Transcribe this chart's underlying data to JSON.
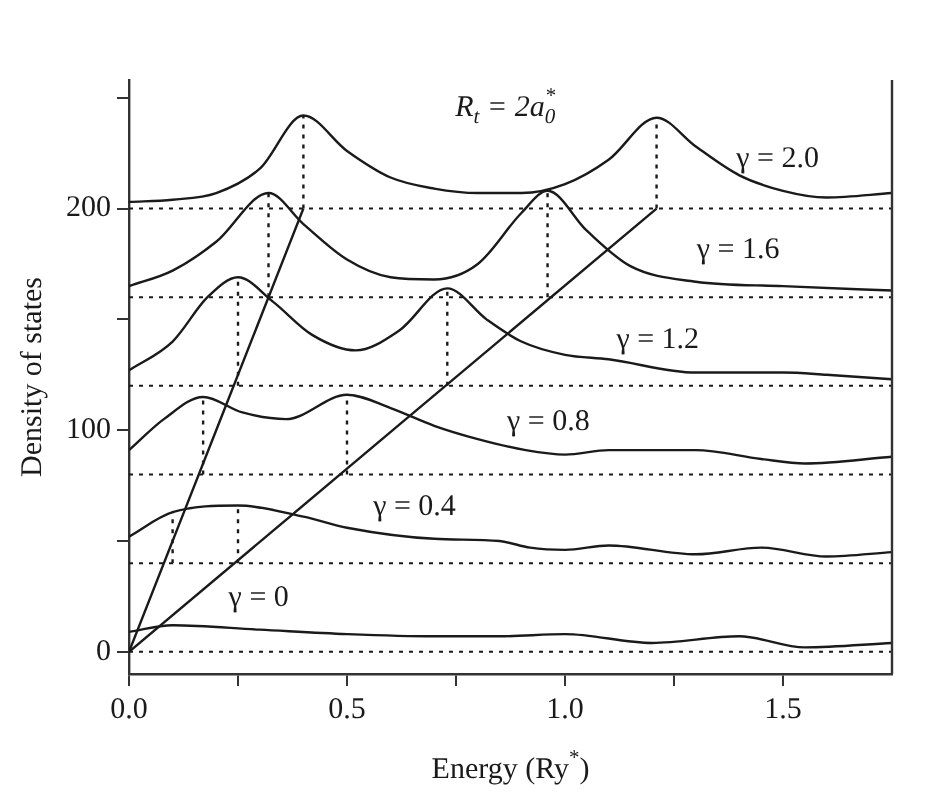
{
  "chart_data": {
    "type": "line",
    "xlabel": "Energy (Ry$^{*}$)",
    "ylabel": "Density of states",
    "xlim": [
      0,
      1.75
    ],
    "xticks": [
      {
        "value": 0,
        "label": "0.0"
      },
      {
        "value": 0.25,
        "label": null
      },
      0.5,
      {
        "value": 0.75,
        "label": null
      },
      {
        "value": 1,
        "label": "1.0"
      },
      {
        "value": 1.25,
        "label": null
      },
      1.5
    ],
    "ylim": [
      -10,
      258
    ],
    "yticks": [
      0,
      {
        "value": 50,
        "label": null
      },
      100,
      {
        "value": 150,
        "label": null
      },
      200,
      {
        "value": 250,
        "label": null
      }
    ],
    "grid": false,
    "legend": false,
    "marker": "none",
    "line_style": "solid",
    "series": [
      {
        "name": "γ = 0",
        "color": "#1a1a1a",
        "x": [
          0,
          0.1,
          0.3,
          0.5,
          0.7,
          0.85,
          1.0,
          1.2,
          1.4,
          1.55,
          1.75
        ],
        "values": [
          9,
          12,
          10,
          8,
          7,
          7,
          8,
          4,
          7,
          2,
          4
        ]
      },
      {
        "name": "γ = 0.4",
        "color": "#1a1a1a",
        "x": [
          0,
          0.1,
          0.25,
          0.4,
          0.5,
          0.7,
          0.85,
          0.92,
          1.0,
          1.1,
          1.3,
          1.45,
          1.6,
          1.75
        ],
        "values": [
          52,
          63,
          66,
          61,
          56,
          51,
          50,
          47,
          46,
          48,
          44,
          47,
          43,
          45
        ]
      },
      {
        "name": "γ = 0.8",
        "color": "#1a1a1a",
        "x": [
          0,
          0.08,
          0.17,
          0.26,
          0.36,
          0.5,
          0.6,
          0.7,
          0.8,
          0.91,
          1.0,
          1.1,
          1.3,
          1.45,
          1.55,
          1.75
        ],
        "values": [
          91,
          105,
          115,
          108,
          105,
          116,
          110,
          102,
          96,
          91,
          89,
          91,
          91,
          87,
          85,
          88
        ]
      },
      {
        "name": "γ = 1.2",
        "color": "#1a1a1a",
        "x": [
          0,
          0.1,
          0.18,
          0.25,
          0.33,
          0.42,
          0.52,
          0.62,
          0.73,
          0.82,
          0.9,
          1.0,
          1.1,
          1.3,
          1.5,
          1.6,
          1.75
        ],
        "values": [
          127,
          140,
          160,
          169,
          158,
          143,
          136,
          145,
          164,
          150,
          140,
          134,
          132,
          126,
          126,
          125,
          123
        ]
      },
      {
        "name": "γ = 1.6",
        "color": "#1a1a1a",
        "x": [
          0,
          0.1,
          0.2,
          0.32,
          0.4,
          0.5,
          0.6,
          0.7,
          0.8,
          0.9,
          0.96,
          1.05,
          1.15,
          1.3,
          1.5,
          1.75
        ],
        "values": [
          165,
          172,
          185,
          207,
          193,
          177,
          169,
          168,
          175,
          198,
          208,
          190,
          174,
          167,
          165,
          163
        ]
      },
      {
        "name": "γ = 2.0",
        "color": "#1a1a1a",
        "x": [
          0,
          0.1,
          0.2,
          0.3,
          0.4,
          0.5,
          0.6,
          0.7,
          0.8,
          0.9,
          1.0,
          1.1,
          1.21,
          1.3,
          1.4,
          1.5,
          1.6,
          1.75
        ],
        "values": [
          203,
          204,
          207,
          218,
          242,
          226,
          214,
          209,
          207,
          207,
          211,
          222,
          241,
          228,
          215,
          208,
          205,
          207
        ]
      },
      {
        "color": "#1a1a1a",
        "x": [
          0,
          0.4
        ],
        "values": [
          0,
          200
        ]
      },
      {
        "color": "#1a1a1a",
        "x": [
          0,
          1.21
        ],
        "values": [
          0,
          200
        ]
      },
      {
        "color": "#1a1a1a",
        "line_style": "dotted",
        "x": [
          0.1,
          0.1
        ],
        "values": [
          40,
          63
        ]
      },
      {
        "color": "#1a1a1a",
        "line_style": "dotted",
        "x": [
          0.25,
          0.25
        ],
        "values": [
          40,
          66
        ]
      },
      {
        "color": "#1a1a1a",
        "line_style": "dotted",
        "x": [
          0.17,
          0.17
        ],
        "values": [
          80,
          115
        ]
      },
      {
        "color": "#1a1a1a",
        "line_style": "dotted",
        "x": [
          0.5,
          0.5
        ],
        "values": [
          80,
          116
        ]
      },
      {
        "color": "#1a1a1a",
        "line_style": "dotted",
        "x": [
          0.25,
          0.25
        ],
        "values": [
          120,
          169
        ]
      },
      {
        "color": "#1a1a1a",
        "line_style": "dotted",
        "x": [
          0.73,
          0.73
        ],
        "values": [
          120,
          164
        ]
      },
      {
        "color": "#1a1a1a",
        "line_style": "dotted",
        "x": [
          0.32,
          0.32
        ],
        "values": [
          160,
          207
        ]
      },
      {
        "color": "#1a1a1a",
        "line_style": "dotted",
        "x": [
          0.96,
          0.96
        ],
        "values": [
          160,
          208
        ]
      },
      {
        "color": "#1a1a1a",
        "line_style": "dotted",
        "x": [
          0.4,
          0.4
        ],
        "values": [
          200,
          242
        ]
      },
      {
        "color": "#1a1a1a",
        "line_style": "dotted",
        "x": [
          1.21,
          1.21
        ],
        "values": [
          200,
          241
        ]
      }
    ],
    "ref_lines": [
      {
        "axis": "y",
        "value": 0,
        "color": "#1a1a1a",
        "line_style": "dotted"
      },
      {
        "axis": "y",
        "value": 40,
        "color": "#1a1a1a",
        "line_style": "dotted"
      },
      {
        "axis": "y",
        "value": 80,
        "color": "#1a1a1a",
        "line_style": "dotted"
      },
      {
        "axis": "y",
        "value": 120,
        "color": "#1a1a1a",
        "line_style": "dotted"
      },
      {
        "axis": "y",
        "value": 160,
        "color": "#1a1a1a",
        "line_style": "dotted"
      },
      {
        "axis": "y",
        "value": 200,
        "color": "#1a1a1a",
        "line_style": "dotted"
      }
    ],
    "annotations": [
      "R$_{t}$ = 2a$_{0}$$^{*}$"
    ]
  }
}
